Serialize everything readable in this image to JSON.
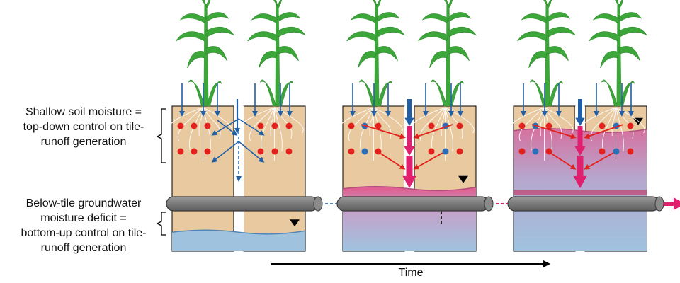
{
  "labels": {
    "shallow_lines": [
      "Shallow soil moisture =",
      "top-down control on tile-",
      "runoff generation"
    ],
    "below_lines": [
      "Below-tile groundwater",
      "moisture deficit =",
      "bottom-up control on tile-",
      "runoff generation"
    ],
    "time": "Time"
  },
  "colors": {
    "soil": "#e8c9a0",
    "water": "#9fc3df",
    "tile": "#7d7d7d",
    "plant": "#3da63a",
    "arrow_blue": "#1f5fa8",
    "arrow_pink": "#e0206f",
    "dot_red": "#e2211c",
    "dot_blue": "#2a6fb8"
  },
  "panels": [
    {
      "stage": "dry",
      "water_fill_fraction": 0.15
    },
    {
      "stage": "wetting",
      "water_fill_fraction": 0.45
    },
    {
      "stage": "wet",
      "water_fill_fraction": 0.85
    }
  ]
}
